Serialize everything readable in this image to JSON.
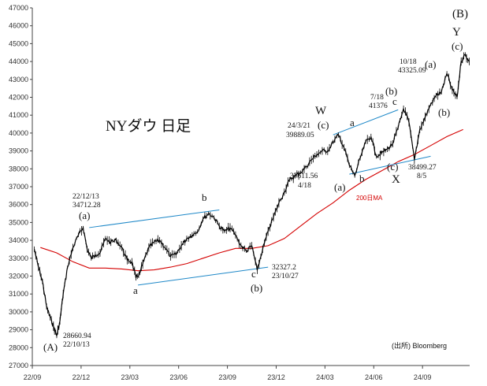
{
  "chart_data": {
    "type": "line",
    "title": "NYダウ 日足",
    "source": "(出所) Bloomberg",
    "ylim": [
      27000,
      47000
    ],
    "yticks": [
      27000,
      28000,
      29000,
      30000,
      31000,
      32000,
      33000,
      34000,
      35000,
      36000,
      37000,
      38000,
      39000,
      40000,
      41000,
      42000,
      43000,
      44000,
      45000,
      46000,
      47000
    ],
    "xticks": [
      "22/09",
      "22/12",
      "23/03",
      "23/06",
      "23/09",
      "23/12",
      "24/03",
      "24/06",
      "24/09"
    ],
    "grid": false,
    "price_series": {
      "name": "NYダウ",
      "color": "#000000",
      "points": [
        [
          "22/09",
          33500
        ],
        [
          "22/09",
          32500
        ],
        [
          "22/09",
          31700
        ],
        [
          "22/09",
          30300
        ],
        [
          "22/10",
          29700
        ],
        [
          "22/10",
          29200
        ],
        [
          "22/10",
          28661
        ],
        [
          "22/10",
          29500
        ],
        [
          "22/10",
          31000
        ],
        [
          "22/11",
          32500
        ],
        [
          "22/11",
          33600
        ],
        [
          "22/11",
          34300
        ],
        [
          "22/12",
          34712
        ],
        [
          "22/12",
          33500
        ],
        [
          "22/12",
          33000
        ],
        [
          "22/12",
          33200
        ],
        [
          "23/01",
          33300
        ],
        [
          "23/01",
          34100
        ],
        [
          "23/01",
          33900
        ],
        [
          "23/02",
          34000
        ],
        [
          "23/02",
          33600
        ],
        [
          "23/02",
          32900
        ],
        [
          "23/03",
          32800
        ],
        [
          "23/03",
          31900
        ],
        [
          "23/03",
          32200
        ],
        [
          "23/03",
          32900
        ],
        [
          "23/04",
          33600
        ],
        [
          "23/04",
          33900
        ],
        [
          "23/04",
          34000
        ],
        [
          "23/05",
          33600
        ],
        [
          "23/05",
          33100
        ],
        [
          "23/05",
          33200
        ],
        [
          "23/06",
          33700
        ],
        [
          "23/06",
          34100
        ],
        [
          "23/06",
          34300
        ],
        [
          "23/07",
          34500
        ],
        [
          "23/07",
          35200
        ],
        [
          "23/07",
          35500
        ],
        [
          "23/08",
          35300
        ],
        [
          "23/08",
          34800
        ],
        [
          "23/08",
          34500
        ],
        [
          "23/09",
          34700
        ],
        [
          "23/09",
          34300
        ],
        [
          "23/09",
          33700
        ],
        [
          "23/10",
          33400
        ],
        [
          "23/10",
          33700
        ],
        [
          "23/10",
          32327
        ],
        [
          "23/11",
          33500
        ],
        [
          "23/11",
          34500
        ],
        [
          "23/11",
          35300
        ],
        [
          "23/12",
          36100
        ],
        [
          "23/12",
          36700
        ],
        [
          "23/12",
          37400
        ],
        [
          "24/01",
          37600
        ],
        [
          "24/01",
          37800
        ],
        [
          "24/01",
          38100
        ],
        [
          "24/02",
          38500
        ],
        [
          "24/02",
          38800
        ],
        [
          "24/02",
          39000
        ],
        [
          "24/03",
          39000
        ],
        [
          "24/03",
          39500
        ],
        [
          "24/03",
          39889
        ],
        [
          "24/04",
          39200
        ],
        [
          "24/04",
          38200
        ],
        [
          "24/04",
          37611
        ],
        [
          "24/05",
          38600
        ],
        [
          "24/05",
          39500
        ],
        [
          "24/05",
          39800
        ],
        [
          "24/06",
          38700
        ],
        [
          "24/06",
          38900
        ],
        [
          "24/06",
          39100
        ],
        [
          "24/07",
          39400
        ],
        [
          "24/07",
          40300
        ],
        [
          "24/07",
          41376
        ],
        [
          "24/08",
          40600
        ],
        [
          "24/08",
          38499
        ],
        [
          "24/08",
          40200
        ],
        [
          "24/09",
          40900
        ],
        [
          "24/09",
          41600
        ],
        [
          "24/09",
          42100
        ],
        [
          "24/10",
          42300
        ],
        [
          "24/10",
          43325
        ],
        [
          "24/10",
          42400
        ],
        [
          "24/11",
          42000
        ],
        [
          "24/11",
          44000
        ],
        [
          "24/11",
          44400
        ],
        [
          "24/11",
          44000
        ]
      ]
    },
    "ma_series": {
      "name": "200日MA",
      "color": "#d40000",
      "points": [
        [
          "22/09",
          33600
        ],
        [
          "22/10",
          33300
        ],
        [
          "22/11",
          32800
        ],
        [
          "22/12",
          32450
        ],
        [
          "23/01",
          32450
        ],
        [
          "23/02",
          32400
        ],
        [
          "23/03",
          32300
        ],
        [
          "23/04",
          32350
        ],
        [
          "23/05",
          32500
        ],
        [
          "23/06",
          32700
        ],
        [
          "23/07",
          33000
        ],
        [
          "23/08",
          33300
        ],
        [
          "23/09",
          33550
        ],
        [
          "23/10",
          33550
        ],
        [
          "23/11",
          33700
        ],
        [
          "23/12",
          34100
        ],
        [
          "24/01",
          34800
        ],
        [
          "24/02",
          35500
        ],
        [
          "24/03",
          36100
        ],
        [
          "24/04",
          36800
        ],
        [
          "24/05",
          37400
        ],
        [
          "24/06",
          37900
        ],
        [
          "24/07",
          38400
        ],
        [
          "24/08",
          38800
        ],
        [
          "24/09",
          39300
        ],
        [
          "24/10",
          39800
        ],
        [
          "24/11",
          40200
        ]
      ]
    },
    "trendlines": [
      {
        "color": "#1e88c8",
        "from": [
          "22/12",
          34712
        ],
        "to": [
          "23/08",
          35700
        ]
      },
      {
        "color": "#1e88c8",
        "from": [
          "23/03",
          31500
        ],
        "to": [
          "23/11",
          32500
        ]
      },
      {
        "color": "#1e88c8",
        "from": [
          "24/03",
          39900
        ],
        "to": [
          "24/07",
          41300
        ]
      },
      {
        "color": "#1e88c8",
        "from": [
          "24/04",
          37700
        ],
        "to": [
          "24/09",
          38700
        ]
      }
    ],
    "annotations": [
      {
        "text": "22/12/13",
        "x": "22/12",
        "y": 35800
      },
      {
        "text": "34712.28",
        "x": "22/12",
        "y": 35300
      },
      {
        "text": "(a)",
        "x": "22/12",
        "y": 35000
      },
      {
        "text": "b",
        "x": "23/08",
        "y": 36000
      },
      {
        "text": "a",
        "x": "23/03",
        "y": 30900
      },
      {
        "text": "32327.2",
        "x": "23/11",
        "y": 32800
      },
      {
        "text": "23/10/27",
        "x": "23/11",
        "y": 32300
      },
      {
        "text": "c",
        "x": "23/10",
        "y": 31600
      },
      {
        "text": "(b)",
        "x": "23/10",
        "y": 30900
      },
      {
        "text": "28660.94",
        "x": "22/11",
        "y": 28500
      },
      {
        "text": "22/10/13",
        "x": "22/11",
        "y": 28000
      },
      {
        "text": "(A)",
        "x": "22/10",
        "y": 27400
      },
      {
        "text": "NYダウ 日足",
        "x": "23/03",
        "y": 40200
      },
      {
        "text": "W",
        "x": "24/03",
        "y": 41200
      },
      {
        "text": "(c)",
        "x": "24/03",
        "y": 40500
      },
      {
        "text": "24/3/21",
        "x": "24/02",
        "y": 40200
      },
      {
        "text": "39889.05",
        "x": "24/02",
        "y": 39700
      },
      {
        "text": "a",
        "x": "24/05",
        "y": 40400
      },
      {
        "text": "37611.56",
        "x": "24/03",
        "y": 37500
      },
      {
        "text": "4/18",
        "x": "24/04",
        "y": 37000
      },
      {
        "text": "(a)",
        "x": "24/04",
        "y": 37000
      },
      {
        "text": "b",
        "x": "24/05",
        "y": 37300
      },
      {
        "text": "7/18",
        "x": "24/06",
        "y": 42100
      },
      {
        "text": "41376",
        "x": "24/06",
        "y": 41600
      },
      {
        "text": "c",
        "x": "24/07",
        "y": 41600
      },
      {
        "text": "(b)",
        "x": "24/07",
        "y": 38800
      },
      {
        "text": "(c)",
        "x": "24/07",
        "y": 38000
      },
      {
        "text": "X",
        "x": "24/07",
        "y": 37400
      },
      {
        "text": "38499.27",
        "x": "24/09",
        "y": 38000
      },
      {
        "text": "8/5",
        "x": "24/09",
        "y": 37500
      },
      {
        "text": "200日MA",
        "x": "24/05",
        "y": 36300
      },
      {
        "text": "10/18",
        "x": "24/09",
        "y": 43900
      },
      {
        "text": "43325.09",
        "x": "24/09",
        "y": 43400
      },
      {
        "text": "(a)",
        "x": "24/10",
        "y": 43700
      },
      {
        "text": "(b)",
        "x": "24/10",
        "y": 41000
      },
      {
        "text": "(B)",
        "x": "24/11",
        "y": 46600
      },
      {
        "text": "Y",
        "x": "24/11",
        "y": 45500
      },
      {
        "text": "(c)",
        "x": "24/11",
        "y": 44800
      },
      {
        "text": "(出所) Bloomberg",
        "x": "24/09",
        "y": 27900
      }
    ]
  }
}
